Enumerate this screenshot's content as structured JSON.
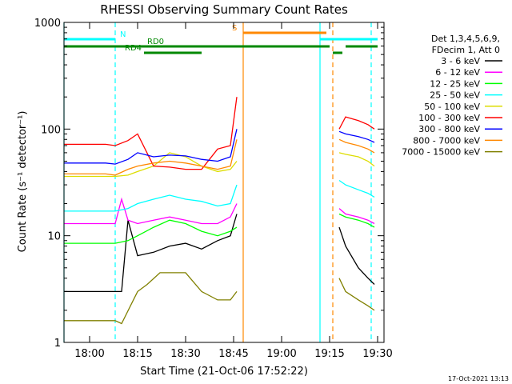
{
  "chart_data": {
    "type": "line",
    "title": "RHESSI Observing Summary Count Rates",
    "xlabel": "Start Time (21-Oct-06 17:52:22)",
    "ylabel": "Count Rate (s⁻¹ detector⁻¹)",
    "yscale": "log",
    "xlim": [
      "17:52",
      "19:32"
    ],
    "ylim": [
      1,
      1000
    ],
    "x_ticks": [
      "18:00",
      "18:15",
      "18:30",
      "18:45",
      "19:00",
      "19:15",
      "19:30"
    ],
    "y_ticks": [
      "1",
      "10",
      "100",
      "1000"
    ],
    "legend_header": [
      "Det 1,3,4,5,6,9,",
      "FDecim 1, Att 0"
    ],
    "legend_position": "right",
    "grid": false,
    "series": [
      {
        "name": "3 - 6 keV",
        "color": "#000000",
        "x": [
          "17:52",
          "18:08",
          "18:10",
          "18:12",
          "18:15",
          "18:20",
          "18:25",
          "18:30",
          "18:35",
          "18:40",
          "18:44",
          "18:46",
          "18:47",
          "19:17",
          "19:18",
          "19:20",
          "19:24",
          "19:27",
          "19:29"
        ],
        "y": [
          3,
          3,
          3,
          14,
          6.5,
          7,
          8,
          8.5,
          7.5,
          9,
          10,
          16,
          null,
          null,
          12,
          8,
          5,
          4,
          3.5
        ]
      },
      {
        "name": "6 - 12 keV",
        "color": "#ff00ff",
        "x": [
          "17:52",
          "18:05",
          "18:08",
          "18:10",
          "18:12",
          "18:15",
          "18:20",
          "18:25",
          "18:30",
          "18:35",
          "18:40",
          "18:44",
          "18:46",
          "18:47",
          "19:17",
          "19:18",
          "19:20",
          "19:24",
          "19:27",
          "19:29"
        ],
        "y": [
          13,
          13,
          13,
          22,
          14,
          13,
          14,
          15,
          14,
          13,
          13,
          15,
          20,
          null,
          null,
          18,
          16,
          15,
          14,
          13
        ]
      },
      {
        "name": "12 - 25 keV",
        "color": "#00ff00",
        "x": [
          "17:52",
          "18:05",
          "18:08",
          "18:12",
          "18:15",
          "18:20",
          "18:25",
          "18:30",
          "18:35",
          "18:40",
          "18:44",
          "18:46",
          "18:47",
          "19:17",
          "19:18",
          "19:20",
          "19:24",
          "19:27",
          "19:29"
        ],
        "y": [
          8.5,
          8.5,
          8.5,
          9,
          10,
          12,
          14,
          13,
          11,
          10,
          11,
          12,
          null,
          null,
          16,
          15,
          14,
          13,
          12
        ]
      },
      {
        "name": "25 - 50 keV",
        "color": "#00ffff",
        "x": [
          "17:52",
          "18:05",
          "18:08",
          "18:12",
          "18:15",
          "18:20",
          "18:25",
          "18:30",
          "18:35",
          "18:40",
          "18:44",
          "18:46",
          "18:47",
          "19:17",
          "19:18",
          "19:20",
          "19:24",
          "19:27",
          "19:29"
        ],
        "y": [
          17,
          17,
          17,
          18,
          20,
          22,
          24,
          22,
          21,
          19,
          20,
          30,
          null,
          null,
          33,
          30,
          27,
          25,
          23
        ]
      },
      {
        "name": "50 - 100 keV",
        "color": "#dddd00",
        "x": [
          "17:52",
          "18:05",
          "18:08",
          "18:12",
          "18:15",
          "18:20",
          "18:25",
          "18:30",
          "18:35",
          "18:40",
          "18:44",
          "18:46",
          "18:47",
          "19:17",
          "19:18",
          "19:20",
          "19:24",
          "19:27",
          "19:29"
        ],
        "y": [
          36,
          36,
          36,
          37,
          40,
          45,
          60,
          55,
          45,
          40,
          42,
          50,
          null,
          null,
          60,
          58,
          55,
          50,
          45
        ]
      },
      {
        "name": "100 - 300 keV",
        "color": "#ff0000",
        "x": [
          "17:52",
          "18:05",
          "18:08",
          "18:12",
          "18:15",
          "18:20",
          "18:25",
          "18:30",
          "18:35",
          "18:40",
          "18:44",
          "18:46",
          "18:47",
          "19:17",
          "19:18",
          "19:20",
          "19:24",
          "19:27",
          "19:29"
        ],
        "y": [
          72,
          72,
          70,
          78,
          90,
          45,
          44,
          42,
          42,
          65,
          70,
          200,
          null,
          null,
          100,
          130,
          120,
          110,
          100
        ]
      },
      {
        "name": "300 - 800 keV",
        "color": "#0000ff",
        "x": [
          "17:52",
          "18:05",
          "18:08",
          "18:12",
          "18:15",
          "18:20",
          "18:25",
          "18:30",
          "18:35",
          "18:40",
          "18:44",
          "18:46",
          "18:47",
          "19:17",
          "19:18",
          "19:20",
          "19:24",
          "19:27",
          "19:29"
        ],
        "y": [
          48,
          48,
          47,
          52,
          60,
          55,
          57,
          56,
          52,
          50,
          55,
          100,
          null,
          null,
          95,
          90,
          85,
          80,
          75
        ]
      },
      {
        "name": "800 - 7000 keV",
        "color": "#ff8800",
        "x": [
          "17:52",
          "18:05",
          "18:08",
          "18:12",
          "18:15",
          "18:20",
          "18:25",
          "18:30",
          "18:35",
          "18:40",
          "18:44",
          "18:46",
          "18:47",
          "19:17",
          "19:18",
          "19:20",
          "19:24",
          "19:27",
          "19:29"
        ],
        "y": [
          38,
          38,
          37,
          42,
          45,
          48,
          50,
          48,
          45,
          42,
          45,
          80,
          null,
          null,
          80,
          75,
          70,
          65,
          60
        ]
      },
      {
        "name": "7000 - 15000 keV",
        "color": "#808000",
        "x": [
          "17:52",
          "18:08",
          "18:10",
          "18:15",
          "18:18",
          "18:22",
          "18:30",
          "18:35",
          "18:40",
          "18:44",
          "18:46",
          "18:47",
          "19:17",
          "19:18",
          "19:20",
          "19:24",
          "19:27",
          "19:29"
        ],
        "y": [
          1.6,
          1.6,
          1.5,
          3,
          3.5,
          4.5,
          4.5,
          3,
          2.5,
          2.5,
          3,
          null,
          null,
          4,
          3,
          2.5,
          2.2,
          2
        ]
      }
    ],
    "attenuator_bars": [
      {
        "label": "N",
        "color": "#00ffff",
        "start": "17:52",
        "end": "18:08",
        "level": 1
      },
      {
        "label": "",
        "color": "#00ffff",
        "start": "19:12",
        "end": "19:30",
        "level": 1
      },
      {
        "label": "S",
        "color": "#ff8800",
        "start": "18:48",
        "end": "19:14",
        "level": 0
      },
      {
        "label": "RD0",
        "color": "#008800",
        "start": "17:52",
        "end": "18:35",
        "level": 2,
        "label_at": "18:18"
      },
      {
        "label": "",
        "color": "#008800",
        "start": "18:35",
        "end": "19:15",
        "level": 2
      },
      {
        "label": "",
        "color": "#008800",
        "start": "19:20",
        "end": "19:30",
        "level": 2
      },
      {
        "label": "RD4",
        "color": "#008800",
        "start": "18:17",
        "end": "18:35",
        "level": 3,
        "label_at": "18:11"
      },
      {
        "label": "",
        "color": "#008800",
        "start": "19:16",
        "end": "19:19",
        "level": 3
      }
    ],
    "vertical_markers": [
      {
        "time": "17:52",
        "color": "#00ffff",
        "style": "solid"
      },
      {
        "time": "18:08",
        "color": "#00ffff",
        "style": "dashed"
      },
      {
        "time": "18:48",
        "color": "#ff8800",
        "style": "solid"
      },
      {
        "time": "19:12",
        "color": "#00ffff",
        "style": "solid"
      },
      {
        "time": "19:16",
        "color": "#ff8800",
        "style": "dashed"
      },
      {
        "time": "19:28",
        "color": "#00ffff",
        "style": "dashed"
      }
    ]
  },
  "footer": {
    "date": "17-Oct-2021 13:13"
  }
}
